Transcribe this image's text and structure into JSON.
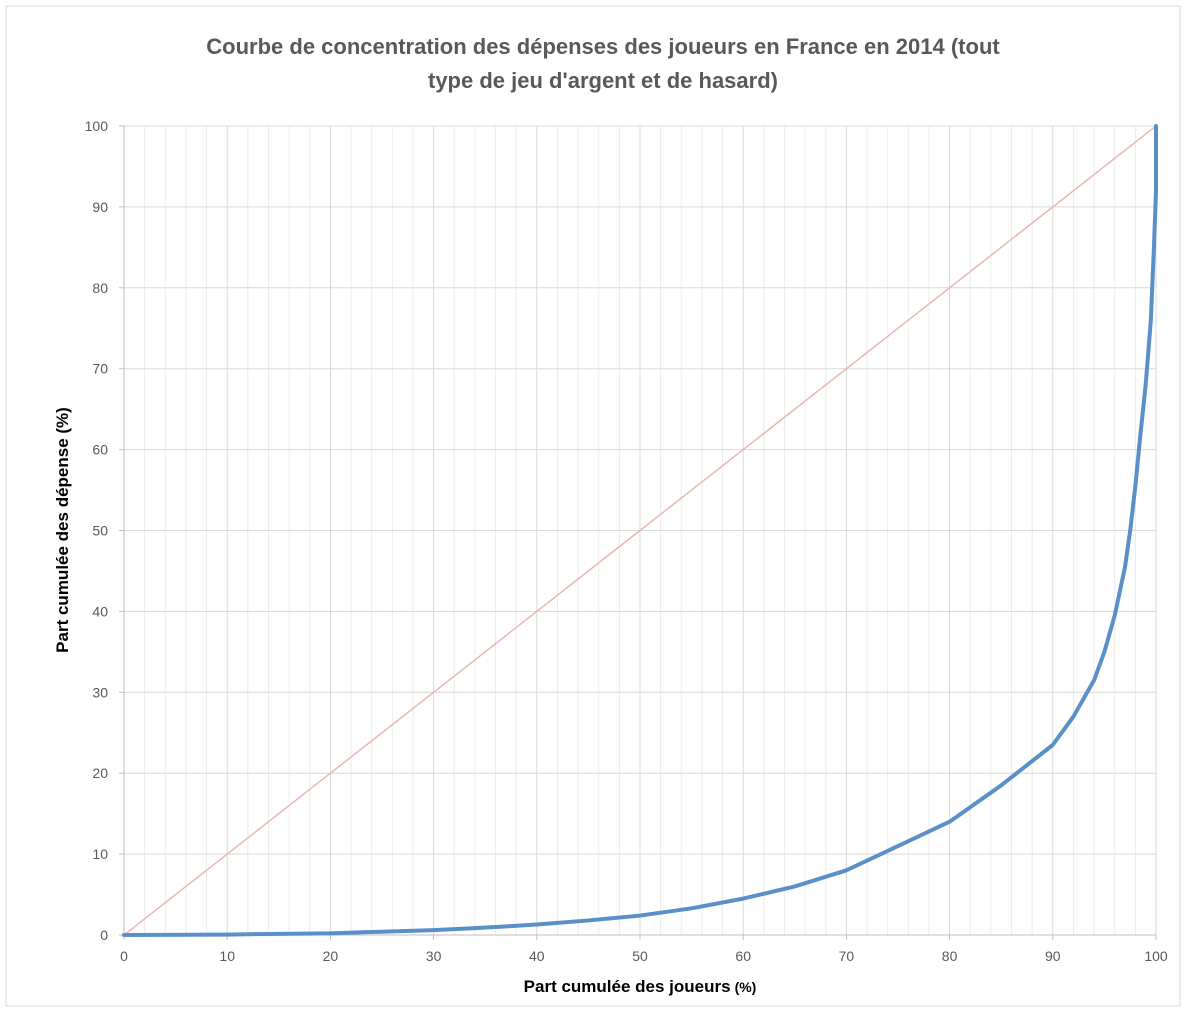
{
  "chart_data": {
    "type": "line",
    "title": "Courbe de concentration des dépenses des joueurs en France en 2014 (tout type de jeu d'argent et de hasard)",
    "title_lines": [
      "Courbe de concentration des dépenses des joueurs en France en 2014 (tout",
      "type de jeu d'argent et de hasard)"
    ],
    "xlabel": "Part cumulée des joueurs",
    "xlabel_unit": "(%)",
    "ylabel": "Part cumulée des dépense (%)",
    "xlim": [
      0,
      100
    ],
    "ylim": [
      0,
      100
    ],
    "x_ticks": [
      "0",
      "10",
      "20",
      "30",
      "40",
      "50",
      "60",
      "70",
      "80",
      "90",
      "100"
    ],
    "y_ticks": [
      "0",
      "10",
      "20",
      "30",
      "40",
      "50",
      "60",
      "70",
      "80",
      "90",
      "100"
    ],
    "grid": true,
    "legend": "none",
    "series": [
      {
        "color": "#e8b8b0",
        "x": [
          0,
          100
        ],
        "y": [
          0,
          100
        ]
      },
      {
        "color": "#5b8fc7",
        "x": [
          0,
          10,
          12,
          20,
          23.5,
          30,
          34,
          37.5,
          40,
          45,
          50,
          55,
          60,
          65,
          70,
          75,
          80,
          85,
          90,
          92,
          94,
          95,
          96,
          97,
          97.5,
          98,
          98.5,
          99,
          99.5,
          99.8,
          100,
          100
        ],
        "y": [
          0,
          0.05,
          0.1,
          0.2,
          0.35,
          0.6,
          0.85,
          1.1,
          1.3,
          1.8,
          2.4,
          3.3,
          4.5,
          6.0,
          8.0,
          11.0,
          14.0,
          18.5,
          23.5,
          27.0,
          31.5,
          35.0,
          39.5,
          45.5,
          50.0,
          55.5,
          62.0,
          68.0,
          76.0,
          85.0,
          92.0,
          100
        ]
      }
    ]
  }
}
